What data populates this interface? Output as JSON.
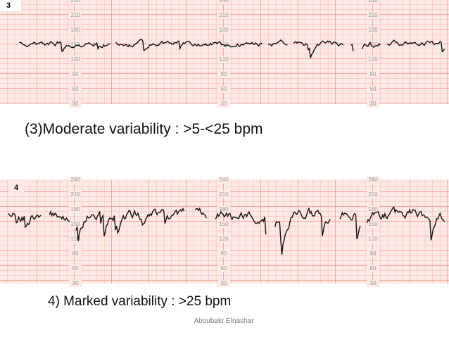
{
  "strips": [
    {
      "label": "3",
      "scale": [
        "240",
        "210",
        "180",
        "150",
        "120",
        "90",
        "60",
        "30"
      ],
      "caption": "(3)Moderate variability : >5-<25 bpm"
    },
    {
      "label": "4",
      "scale": [
        "240",
        "210",
        "180",
        "150",
        "120",
        "90",
        "60",
        "30"
      ],
      "caption": "4) Marked variability : >25 bpm"
    }
  ],
  "footer": {
    "author": "Aboubakr Elnashar"
  }
}
